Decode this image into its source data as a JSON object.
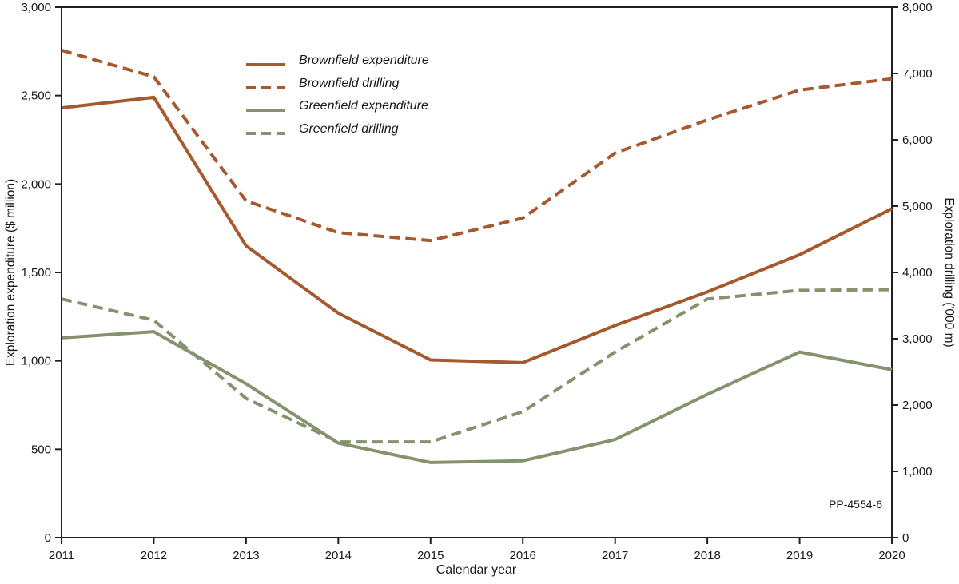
{
  "chart_data": {
    "type": "line",
    "title": "",
    "xlabel": "Calendar year",
    "categories": [
      "2011",
      "2012",
      "2013",
      "2014",
      "2015",
      "2016",
      "2017",
      "2018",
      "2019",
      "2020"
    ],
    "y_left": {
      "label": "Exploration expenditure ($ million)",
      "lim": [
        0,
        3000
      ],
      "tick_step": 500,
      "tick_labels": [
        "0",
        "500",
        "1,000",
        "1,500",
        "2,000",
        "2,500",
        "3,000"
      ]
    },
    "y_right": {
      "label": "Exploration drilling ('000 m)",
      "lim": [
        0,
        8000
      ],
      "tick_step": 1000,
      "tick_labels": [
        "0",
        "1,000",
        "2,000",
        "3,000",
        "4,000",
        "5,000",
        "6,000",
        "7,000",
        "8,000"
      ]
    },
    "grid": false,
    "legend_position": "upper-left-inside",
    "frame_color": "#231f20",
    "annotation": "PP-4554-6",
    "series": [
      {
        "name": "Brownfield expenditure",
        "axis": "left",
        "style": "solid",
        "color": "#a5592d",
        "values": [
          2430,
          2490,
          1650,
          1270,
          1005,
          990,
          1200,
          1390,
          1600,
          1860
        ]
      },
      {
        "name": "Brownfield drilling",
        "axis": "right",
        "style": "dashed",
        "color": "#a5592d",
        "values": [
          7350,
          6950,
          5080,
          4600,
          4480,
          4820,
          5800,
          6300,
          6750,
          6920
        ]
      },
      {
        "name": "Greenfield expenditure",
        "axis": "left",
        "style": "solid",
        "color": "#84926e",
        "values": [
          1130,
          1165,
          870,
          535,
          425,
          435,
          555,
          810,
          1050,
          950
        ]
      },
      {
        "name": "Greenfield drilling",
        "axis": "right",
        "style": "dashed",
        "color": "#84926e",
        "values": [
          3600,
          3280,
          2100,
          1445,
          1445,
          1900,
          2800,
          3600,
          3730,
          3740
        ]
      }
    ]
  }
}
